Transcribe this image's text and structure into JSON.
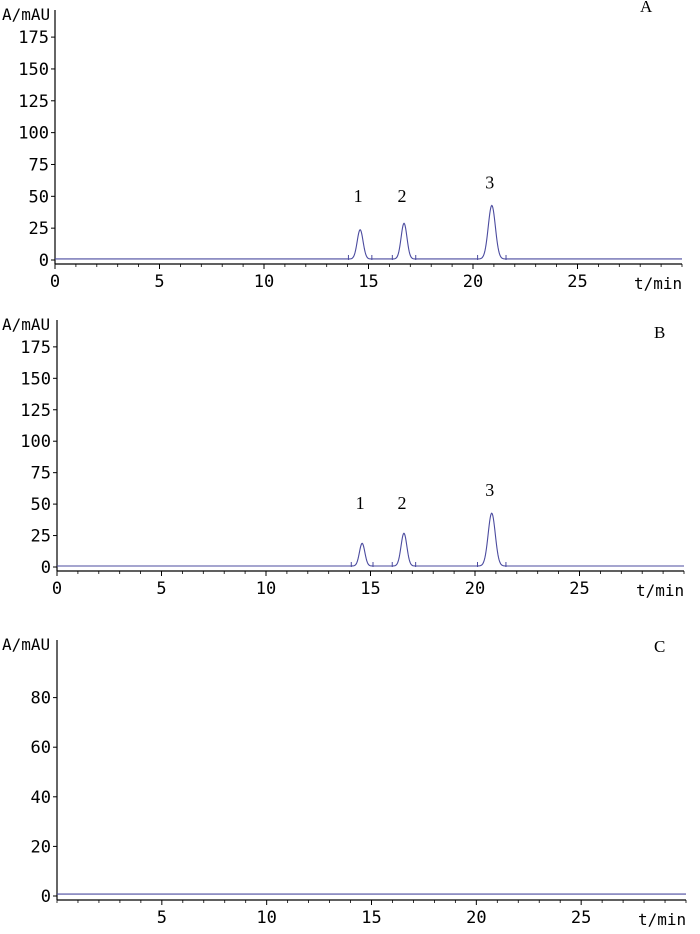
{
  "chart_data": [
    {
      "type": "line",
      "panel": "A",
      "ylabel": "A/mAU",
      "xlabel": "t/min",
      "xlim": [
        0,
        30
      ],
      "ylim": [
        0,
        190
      ],
      "x_ticks": [
        0,
        5,
        10,
        15,
        20,
        25
      ],
      "y_ticks": [
        0,
        25,
        50,
        75,
        100,
        125,
        150,
        175
      ],
      "line_color": "#4b4b9f",
      "peaks": [
        {
          "label": "1",
          "rt": 14.6,
          "height": 23,
          "width": 0.14
        },
        {
          "label": "2",
          "rt": 16.7,
          "height": 28,
          "width": 0.14
        },
        {
          "label": "3",
          "rt": 20.9,
          "height": 42,
          "width": 0.17
        }
      ]
    },
    {
      "type": "line",
      "panel": "B",
      "ylabel": "A/mAU",
      "xlabel": "t/min",
      "xlim": [
        0,
        30
      ],
      "ylim": [
        0,
        190
      ],
      "x_ticks": [
        0,
        5,
        10,
        15,
        20,
        25
      ],
      "y_ticks": [
        0,
        25,
        50,
        75,
        100,
        125,
        150,
        175
      ],
      "line_color": "#4b4b9f",
      "peaks": [
        {
          "label": "1",
          "rt": 14.6,
          "height": 18,
          "width": 0.13
        },
        {
          "label": "2",
          "rt": 16.6,
          "height": 26,
          "width": 0.14
        },
        {
          "label": "3",
          "rt": 20.8,
          "height": 42,
          "width": 0.17
        }
      ]
    },
    {
      "type": "line",
      "panel": "C",
      "ylabel": "A/mAU",
      "xlabel": "t/min",
      "xlim": [
        0,
        30
      ],
      "ylim": [
        0,
        100
      ],
      "x_ticks": [
        5,
        10,
        15,
        20,
        25
      ],
      "y_ticks": [
        0,
        20,
        40,
        60,
        80
      ],
      "line_color": "#4b4b9f",
      "peaks": []
    }
  ]
}
